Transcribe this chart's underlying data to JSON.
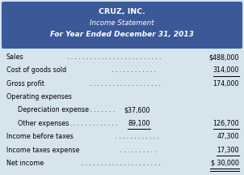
{
  "title_line1": "CRUZ, INC.",
  "title_line2": "Income Statement",
  "title_line3": "For Year Ended December 31, 2013",
  "header_bg": "#3B5998",
  "header_text_color": "#FFFFFF",
  "body_bg": "#D6E4EE",
  "rows": [
    {
      "label": "Sales",
      "dots": ". . . . . . . . . . . . . . . . . . . . . . . . .",
      "col1": "",
      "col2": "$488,000",
      "indent": 0,
      "underline_col1": false,
      "underline_col2": false,
      "double_underline": false
    },
    {
      "label": "Cost of goods sold",
      "dots": " . . . . . . . . . . . .",
      "col1": "",
      "col2": "314,000",
      "indent": 0,
      "underline_col1": false,
      "underline_col2": true,
      "double_underline": false
    },
    {
      "label": "Gross profit",
      "dots": ". . . . . . . . . . . . . . . . . . .",
      "col1": "",
      "col2": "174,000",
      "indent": 0,
      "underline_col1": false,
      "underline_col2": false,
      "double_underline": false
    },
    {
      "label": "Operating expenses",
      "dots": "",
      "col1": "",
      "col2": "",
      "indent": 0,
      "underline_col1": false,
      "underline_col2": false,
      "double_underline": false
    },
    {
      "label": "Depreciation expense",
      "dots": ". . . . . . . . . .",
      "col1": "$37,600",
      "col2": "",
      "indent": 1,
      "underline_col1": false,
      "underline_col2": false,
      "double_underline": false
    },
    {
      "label": "Other expenses",
      "dots": " . . . . . . . . . . . . . .",
      "col1": "89,100",
      "col2": "126,700",
      "indent": 1,
      "underline_col1": true,
      "underline_col2": true,
      "double_underline": false
    },
    {
      "label": "Income before taxes",
      "dots": " . . . . . . . . . . . .",
      "col1": "",
      "col2": "47,300",
      "indent": 0,
      "underline_col1": false,
      "underline_col2": false,
      "double_underline": false
    },
    {
      "label": "Income taxes expense",
      "dots": " . . . . . . . . . .",
      "col1": "",
      "col2": "17,300",
      "indent": 0,
      "underline_col1": false,
      "underline_col2": true,
      "double_underline": false
    },
    {
      "label": "Net income",
      "dots": ". . . . . . . . . . . . . . . . . . . . .",
      "col1": "",
      "col2": "$ 30,000",
      "indent": 0,
      "underline_col1": false,
      "underline_col2": true,
      "double_underline": true
    }
  ],
  "font_size_title1": 6.8,
  "font_size_title2": 6.2,
  "font_size_title3": 6.5,
  "font_size_body": 5.8
}
